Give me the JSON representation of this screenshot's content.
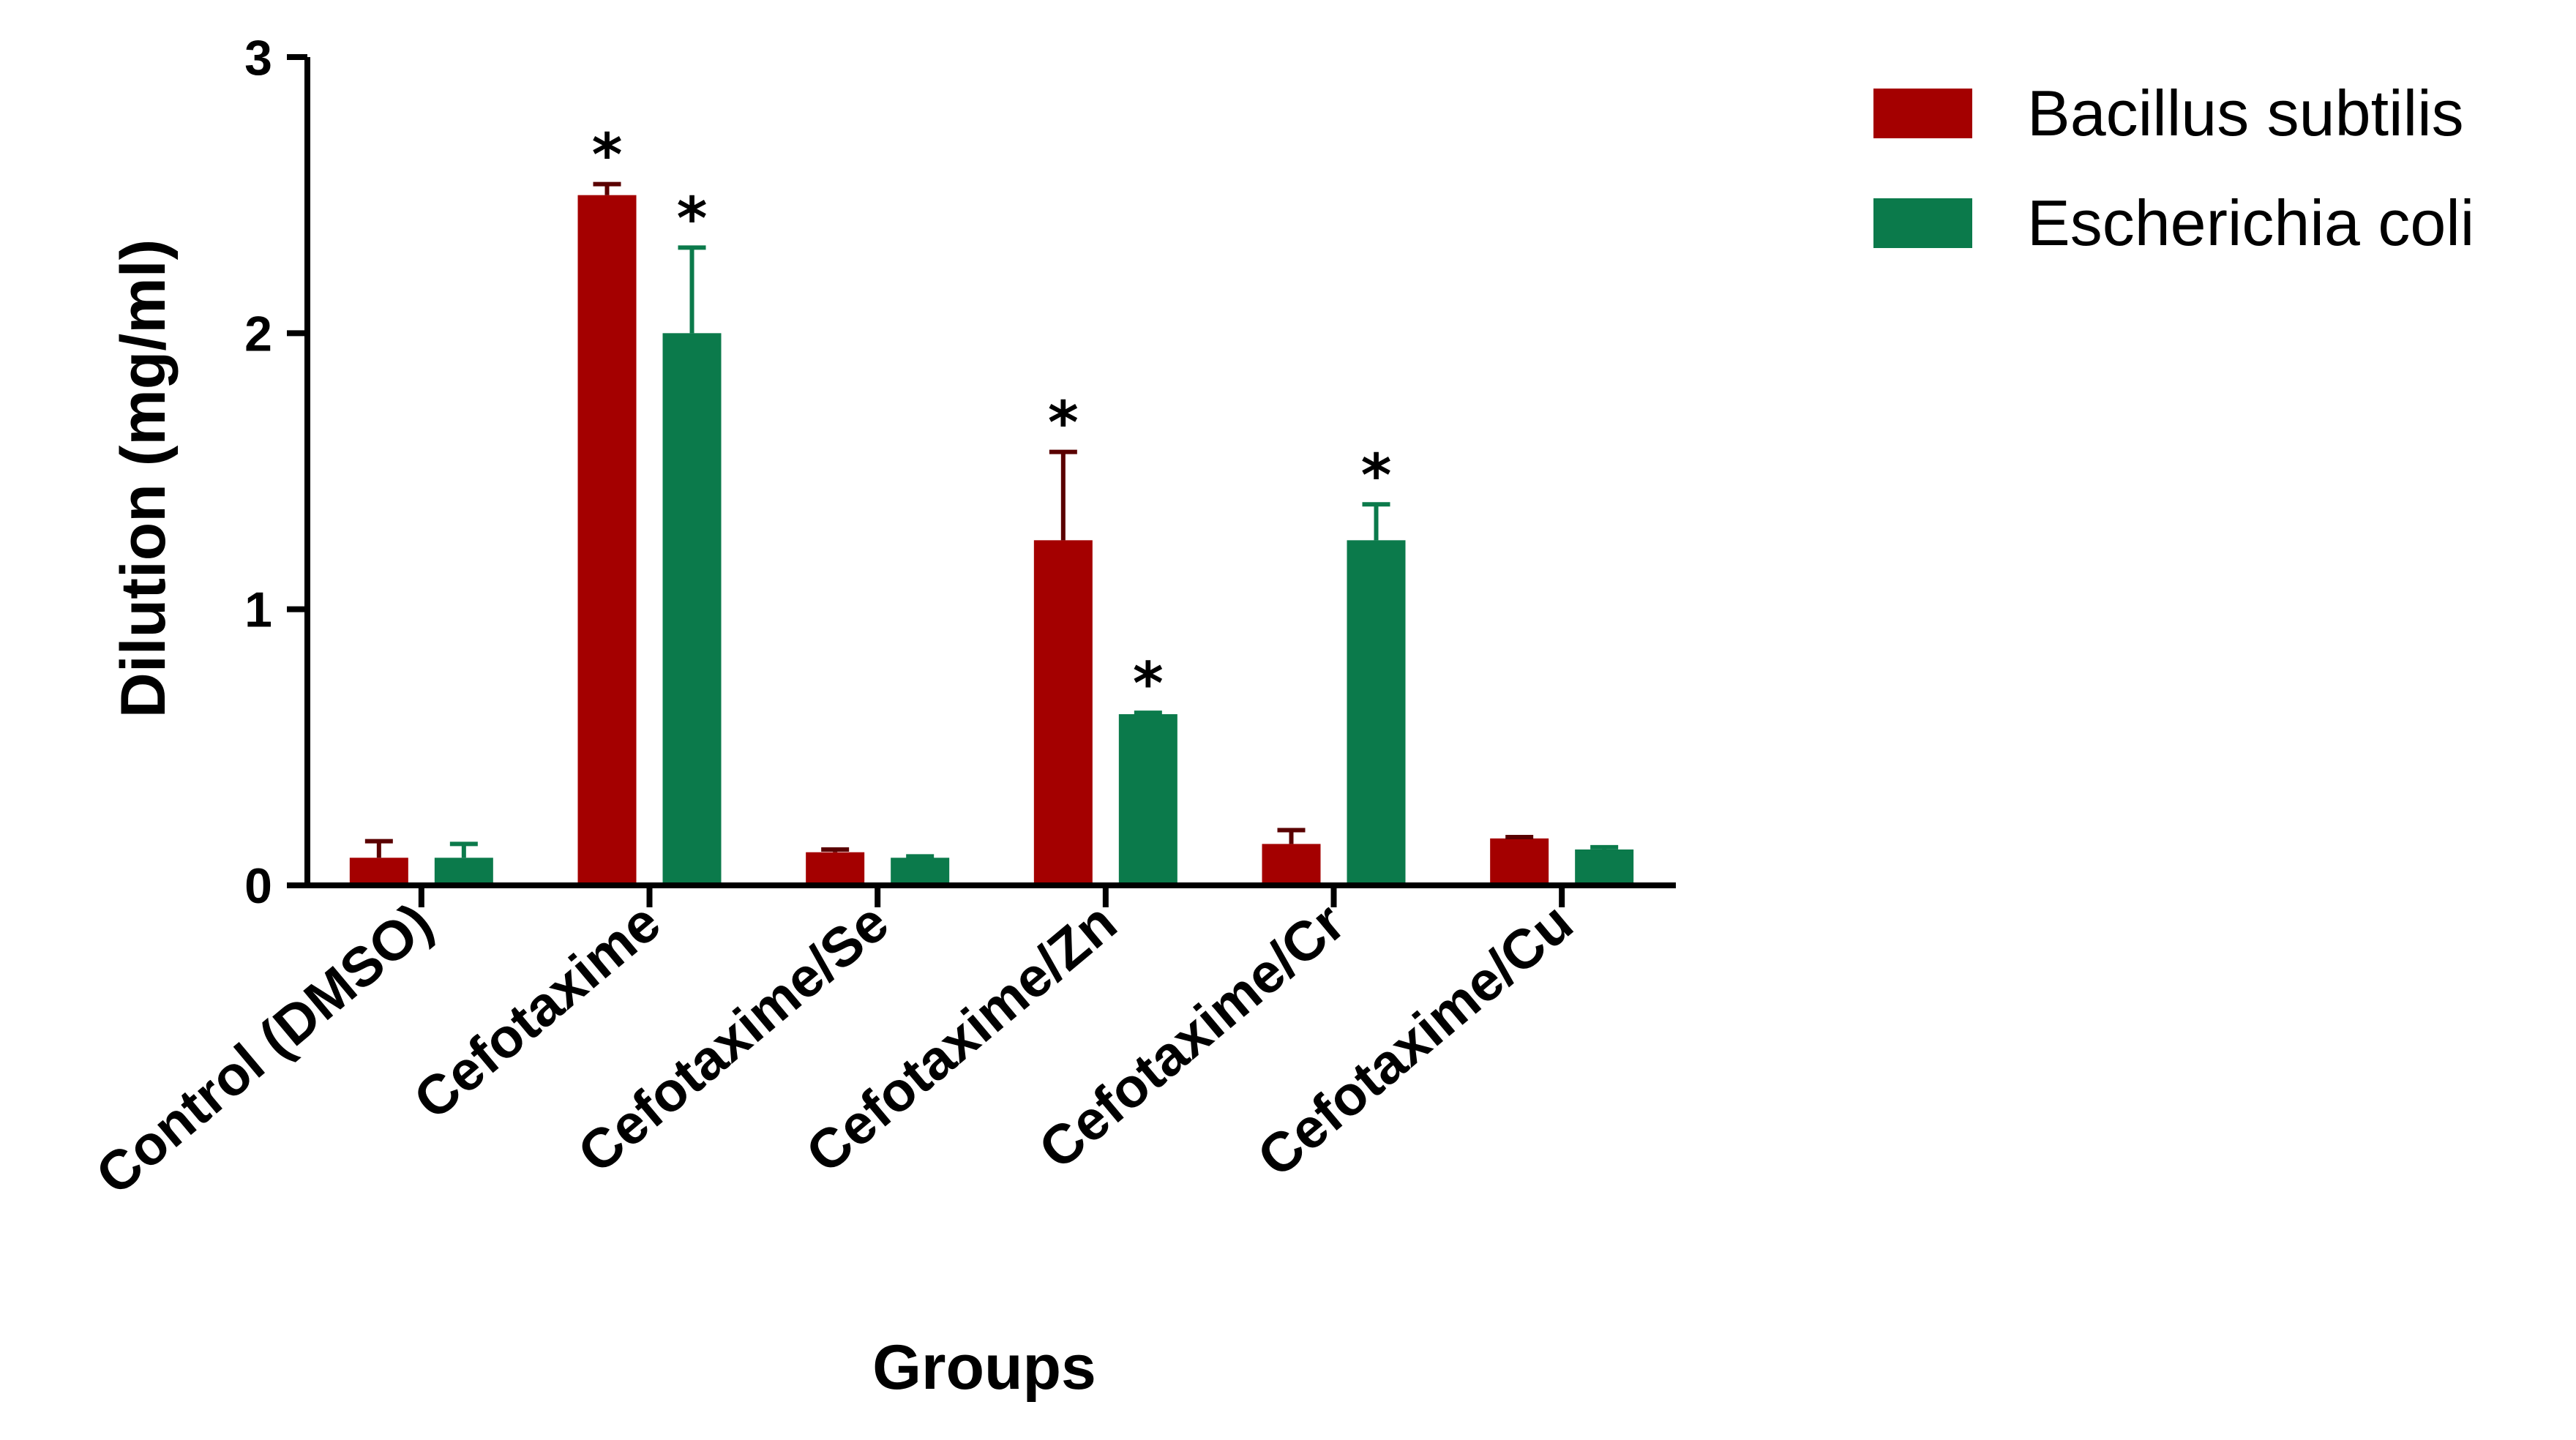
{
  "chart_data": {
    "type": "bar",
    "title": "",
    "xlabel": "Groups",
    "ylabel": "Dilution (mg/ml)",
    "ylim": [
      0,
      3
    ],
    "yticks": [
      0,
      1,
      2,
      3
    ],
    "grid": false,
    "legend_position": "top-right",
    "significance_marker": "*",
    "categories": [
      "Control (DMSO)",
      "Cefotaxime",
      "Cefotaxime/Se",
      "Cefotaxime/Zn",
      "Cefotaxime/Cr",
      "Cefotaxime/Cu"
    ],
    "series": [
      {
        "name": "Bacillus subtilis",
        "color": "#a40000",
        "values": [
          0.1,
          2.5,
          0.12,
          1.25,
          0.15,
          0.17
        ],
        "errors": [
          0.06,
          0.04,
          0.01,
          0.32,
          0.05,
          0.005
        ],
        "significant": [
          false,
          true,
          false,
          true,
          false,
          false
        ]
      },
      {
        "name": "Escherichia coli",
        "color": "#0b7a4b",
        "values": [
          0.1,
          2.0,
          0.1,
          0.62,
          1.25,
          0.13
        ],
        "errors": [
          0.05,
          0.31,
          0.005,
          0.005,
          0.13,
          0.008
        ],
        "significant": [
          false,
          true,
          false,
          true,
          true,
          false
        ]
      }
    ]
  }
}
